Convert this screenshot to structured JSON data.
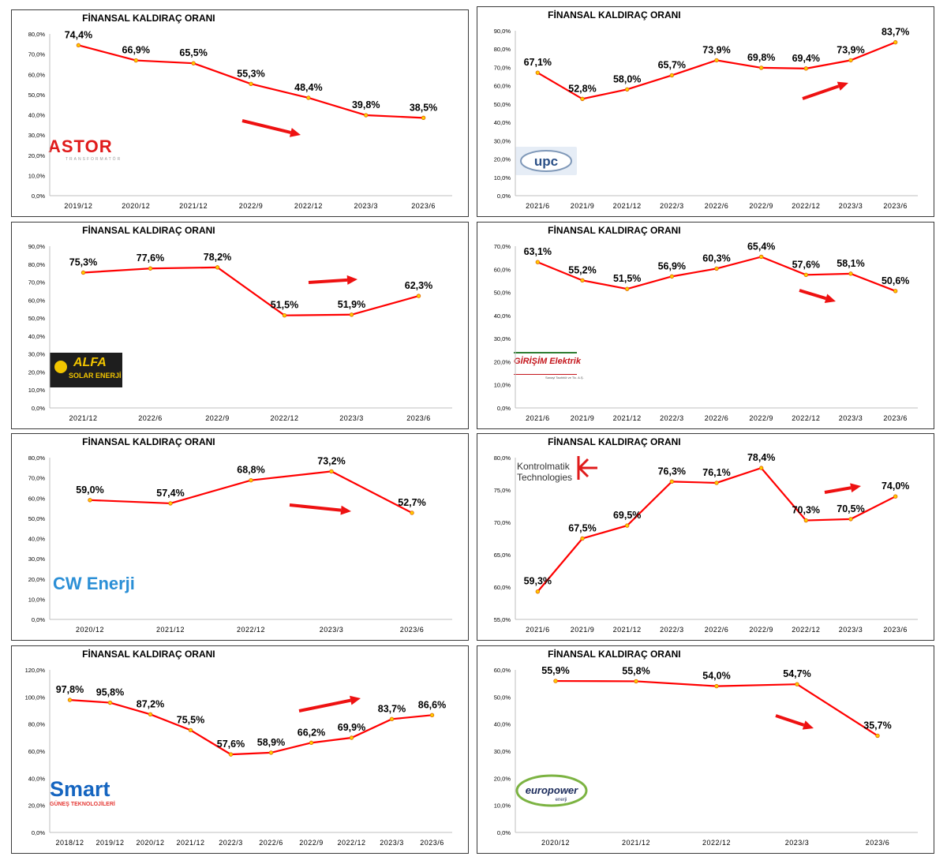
{
  "colors": {
    "line": "#ff0000",
    "marker_fill": "#ffcc00",
    "arrow": "#ee1111",
    "axis_text": "#000000"
  },
  "panels": [
    {
      "title": "FİNANSAL KALDIRAÇ ORANI",
      "logo": {
        "name": "astor-logo",
        "text": "ASTOR",
        "subtext": "TRANSFORMATÖR"
      }
    },
    {
      "title": "FİNANSAL KALDIRAÇ ORANI",
      "logo": {
        "name": "upc-logo",
        "text": "upc"
      }
    },
    {
      "title": "FİNANSAL KALDIRAÇ ORANI",
      "logo": {
        "name": "alfa-solar-logo",
        "text": "ALFA",
        "subtext": "SOLAR ENERJİ"
      }
    },
    {
      "title": "FİNANSAL KALDIRAÇ ORANI",
      "logo": {
        "name": "girisim-elektrik-logo",
        "text": "GİRİŞİM Elektrik",
        "subtext": "Sanayi Taahhüt ve Tic. A.Ş."
      }
    },
    {
      "title": "FİNANSAL KALDIRAÇ ORANI",
      "logo": {
        "name": "cw-enerji-logo",
        "text": "CW Enerji"
      }
    },
    {
      "title": "FİNANSAL KALDIRAÇ ORANI",
      "logo": {
        "name": "kontrolmatik-logo",
        "text": "Kontrolmatik",
        "subtext": "Technologies"
      }
    },
    {
      "title": "FİNANSAL KALDIRAÇ ORANI",
      "logo": {
        "name": "smart-logo",
        "text": "Smart",
        "subtext": "GÜNEŞ TEKNOLOJİLERİ"
      }
    },
    {
      "title": "FİNANSAL KALDIRAÇ ORANI",
      "logo": {
        "name": "europower-logo",
        "text": "europower",
        "subtext": "enerji"
      }
    }
  ],
  "chart_data": [
    {
      "type": "line",
      "title": "FİNANSAL KALDIRAÇ ORANI",
      "categories": [
        "2019/12",
        "2020/12",
        "2021/12",
        "2022/9",
        "2022/12",
        "2023/3",
        "2023/6"
      ],
      "values": [
        74.4,
        66.9,
        65.5,
        55.3,
        48.4,
        39.8,
        38.5
      ],
      "labels": [
        "74,4%",
        "66,9%",
        "65,5%",
        "55,3%",
        "48,4%",
        "39,8%",
        "38,5%"
      ],
      "yticks": [
        "0,0%",
        "10,0%",
        "20,0%",
        "30,0%",
        "40,0%",
        "50,0%",
        "60,0%",
        "70,0%",
        "80,0%"
      ],
      "ylim": [
        0,
        80
      ],
      "trend_arrow": "down-right",
      "grid": false
    },
    {
      "type": "line",
      "title": "FİNANSAL KALDIRAÇ ORANI",
      "categories": [
        "2021/6",
        "2021/9",
        "2021/12",
        "2022/3",
        "2022/6",
        "2022/9",
        "2022/12",
        "2023/3",
        "2023/6"
      ],
      "values": [
        67.1,
        52.8,
        58.0,
        65.7,
        73.9,
        69.8,
        69.4,
        73.9,
        83.7
      ],
      "labels": [
        "67,1%",
        "52,8%",
        "58,0%",
        "65,7%",
        "73,9%",
        "69,8%",
        "69,4%",
        "73,9%",
        "83,7%"
      ],
      "yticks": [
        "0,0%",
        "10,0%",
        "20,0%",
        "30,0%",
        "40,0%",
        "50,0%",
        "60,0%",
        "70,0%",
        "80,0%",
        "90,0%"
      ],
      "ylim": [
        0,
        90
      ],
      "trend_arrow": "up-right",
      "grid": false
    },
    {
      "type": "line",
      "title": "FİNANSAL KALDIRAÇ ORANI",
      "categories": [
        "2021/12",
        "2022/6",
        "2022/9",
        "2022/12",
        "2023/3",
        "2023/6"
      ],
      "values": [
        75.3,
        77.6,
        78.2,
        51.5,
        51.9,
        62.3
      ],
      "labels": [
        "75,3%",
        "77,6%",
        "78,2%",
        "51,5%",
        "51,9%",
        "62,3%"
      ],
      "yticks": [
        "0,0%",
        "10,0%",
        "20,0%",
        "30,0%",
        "40,0%",
        "50,0%",
        "60,0%",
        "70,0%",
        "80,0%",
        "90,0%"
      ],
      "ylim": [
        0,
        90
      ],
      "trend_arrow": "right",
      "grid": false
    },
    {
      "type": "line",
      "title": "FİNANSAL KALDIRAÇ ORANI",
      "categories": [
        "2021/6",
        "2021/9",
        "2021/12",
        "2022/3",
        "2022/6",
        "2022/9",
        "2022/12",
        "2023/3",
        "2023/6"
      ],
      "values": [
        63.1,
        55.2,
        51.5,
        56.9,
        60.3,
        65.4,
        57.6,
        58.1,
        50.6
      ],
      "labels": [
        "63,1%",
        "55,2%",
        "51,5%",
        "56,9%",
        "60,3%",
        "65,4%",
        "57,6%",
        "58,1%",
        "50,6%"
      ],
      "yticks": [
        "0,0%",
        "10,0%",
        "20,0%",
        "30,0%",
        "40,0%",
        "50,0%",
        "60,0%",
        "70,0%"
      ],
      "ylim": [
        0,
        70
      ],
      "trend_arrow": "down-right",
      "grid": false
    },
    {
      "type": "line",
      "title": "FİNANSAL KALDIRAÇ ORANI",
      "categories": [
        "2020/12",
        "2021/12",
        "2022/12",
        "2023/3",
        "2023/6"
      ],
      "values": [
        59.0,
        57.4,
        68.8,
        73.2,
        52.7
      ],
      "labels": [
        "59,0%",
        "57,4%",
        "68,8%",
        "73,2%",
        "52,7%"
      ],
      "yticks": [
        "0,0%",
        "10,0%",
        "20,0%",
        "30,0%",
        "40,0%",
        "50,0%",
        "60,0%",
        "70,0%",
        "80,0%"
      ],
      "ylim": [
        0,
        80
      ],
      "trend_arrow": "right",
      "grid": false
    },
    {
      "type": "line",
      "title": "FİNANSAL KALDIRAÇ ORANI",
      "categories": [
        "2021/6",
        "2021/9",
        "2021/12",
        "2022/3",
        "2022/6",
        "2022/9",
        "2022/12",
        "2023/3",
        "2023/6"
      ],
      "values": [
        59.3,
        67.5,
        69.5,
        76.3,
        76.1,
        78.4,
        70.3,
        70.5,
        74.0
      ],
      "labels": [
        "59,3%",
        "67,5%",
        "69,5%",
        "76,3%",
        "76,1%",
        "78,4%",
        "70,3%",
        "70,5%",
        "74,0%"
      ],
      "yticks": [
        "55,0%",
        "60,0%",
        "65,0%",
        "70,0%",
        "75,0%",
        "80,0%"
      ],
      "ylim": [
        55,
        80
      ],
      "trend_arrow": "up-right",
      "grid": false
    },
    {
      "type": "line",
      "title": "FİNANSAL KALDIRAÇ ORANI",
      "categories": [
        "2018/12",
        "2019/12",
        "2020/12",
        "2021/12",
        "2022/3",
        "2022/6",
        "2022/9",
        "2022/12",
        "2023/3",
        "2023/6"
      ],
      "values": [
        97.8,
        95.8,
        87.2,
        75.5,
        57.6,
        58.9,
        66.2,
        69.9,
        83.7,
        86.6
      ],
      "labels": [
        "97,8%",
        "95,8%",
        "87,2%",
        "75,5%",
        "57,6%",
        "58,9%",
        "66,2%",
        "69,9%",
        "83,7%",
        "86,6%"
      ],
      "yticks": [
        "0,0%",
        "20,0%",
        "40,0%",
        "60,0%",
        "80,0%",
        "100,0%",
        "120,0%"
      ],
      "ylim": [
        0,
        120
      ],
      "trend_arrow": "up-right",
      "grid": false
    },
    {
      "type": "line",
      "title": "FİNANSAL KALDIRAÇ ORANI",
      "categories": [
        "2020/12",
        "2021/12",
        "2022/12",
        "2023/3",
        "2023/6"
      ],
      "values": [
        55.9,
        55.8,
        54.0,
        54.7,
        35.7
      ],
      "labels": [
        "55,9%",
        "55,8%",
        "54,0%",
        "54,7%",
        "35,7%"
      ],
      "yticks": [
        "0,0%",
        "10,0%",
        "20,0%",
        "30,0%",
        "40,0%",
        "50,0%",
        "60,0%"
      ],
      "ylim": [
        0,
        60
      ],
      "trend_arrow": "down-right",
      "grid": false
    }
  ]
}
